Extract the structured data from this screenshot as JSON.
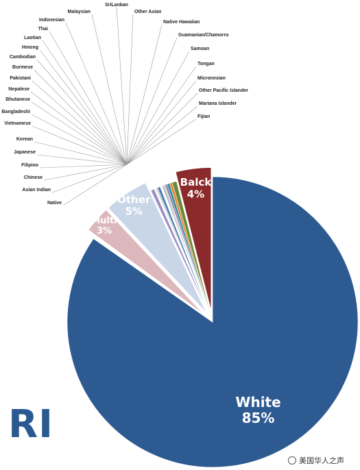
{
  "state_label": "RI",
  "watermark": "美国华人之声",
  "chart_data": {
    "type": "pie",
    "title": "",
    "slices": [
      {
        "label": "White",
        "value": 85,
        "display": "85%",
        "color": "#2e5a92",
        "explode": 0
      },
      {
        "label": "Fijian",
        "value": 0.04,
        "color": "#dcdcdc"
      },
      {
        "label": "Mariana Islander",
        "value": 0.04,
        "color": "#dcdcdc"
      },
      {
        "label": "Other Pacific Islander",
        "value": 0.04,
        "color": "#dcdcdc"
      },
      {
        "label": "Micronesian",
        "value": 0.04,
        "color": "#dcdcdc"
      },
      {
        "label": "Tongan",
        "value": 0.04,
        "color": "#dcdcdc"
      },
      {
        "label": "Samoan",
        "value": 0.04,
        "color": "#dcdcdc"
      },
      {
        "label": "Guamanian/Chamorro",
        "value": 0.04,
        "color": "#dcdcdc"
      },
      {
        "label": "Native Hawaiian",
        "value": 0.04,
        "color": "#dcdcdc"
      },
      {
        "label": "Multi",
        "value": 3,
        "display": "3%",
        "color": "#dcb7bb",
        "explode": 1
      },
      {
        "label": "Other",
        "value": 5,
        "display": "5%",
        "color": "#c9d6e8",
        "explode": 1
      },
      {
        "label": "Other Asian",
        "value": 0.4,
        "color": "#9c8fc6"
      },
      {
        "label": "SriLankan",
        "value": 0.05,
        "color": "#b8a6d2"
      },
      {
        "label": "Malaysian",
        "value": 0.05,
        "color": "#6aa7b8"
      },
      {
        "label": "Indonesian",
        "value": 0.05,
        "color": "#d6a36a"
      },
      {
        "label": "Thai",
        "value": 0.05,
        "color": "#c4c4c4"
      },
      {
        "label": "Laotian",
        "value": 0.1,
        "color": "#b2c98a"
      },
      {
        "label": "Hmong",
        "value": 0.1,
        "color": "#8f7bb5"
      },
      {
        "label": "Cambodian",
        "value": 0.3,
        "color": "#4a7fb0"
      },
      {
        "label": "Burmese",
        "value": 0.05,
        "color": "#d28a8a"
      },
      {
        "label": "Pakistani",
        "value": 0.05,
        "color": "#9bbf6a"
      },
      {
        "label": "Nepalese",
        "value": 0.05,
        "color": "#7a67a8"
      },
      {
        "label": "Bhutanese",
        "value": 0.05,
        "color": "#5aa0b8"
      },
      {
        "label": "Bangladeshi",
        "value": 0.05,
        "color": "#e0a060"
      },
      {
        "label": "Vietnamese",
        "value": 0.15,
        "color": "#8aa0c8"
      },
      {
        "label": "Korean",
        "value": 0.1,
        "color": "#c88080"
      },
      {
        "label": "Japanese",
        "value": 0.1,
        "color": "#9acd60"
      },
      {
        "label": "Filipino",
        "value": 0.2,
        "color": "#7d6aa8"
      },
      {
        "label": "Chinese",
        "value": 0.3,
        "color": "#3a8aa0"
      },
      {
        "label": "Asian Indian",
        "value": 0.3,
        "color": "#e08a3a"
      },
      {
        "label": "Native",
        "value": 0.5,
        "color": "#6a8a3a"
      },
      {
        "label": "Balck",
        "value": 4,
        "display": "4%",
        "color": "#8b2a2a",
        "explode": 1
      }
    ]
  }
}
